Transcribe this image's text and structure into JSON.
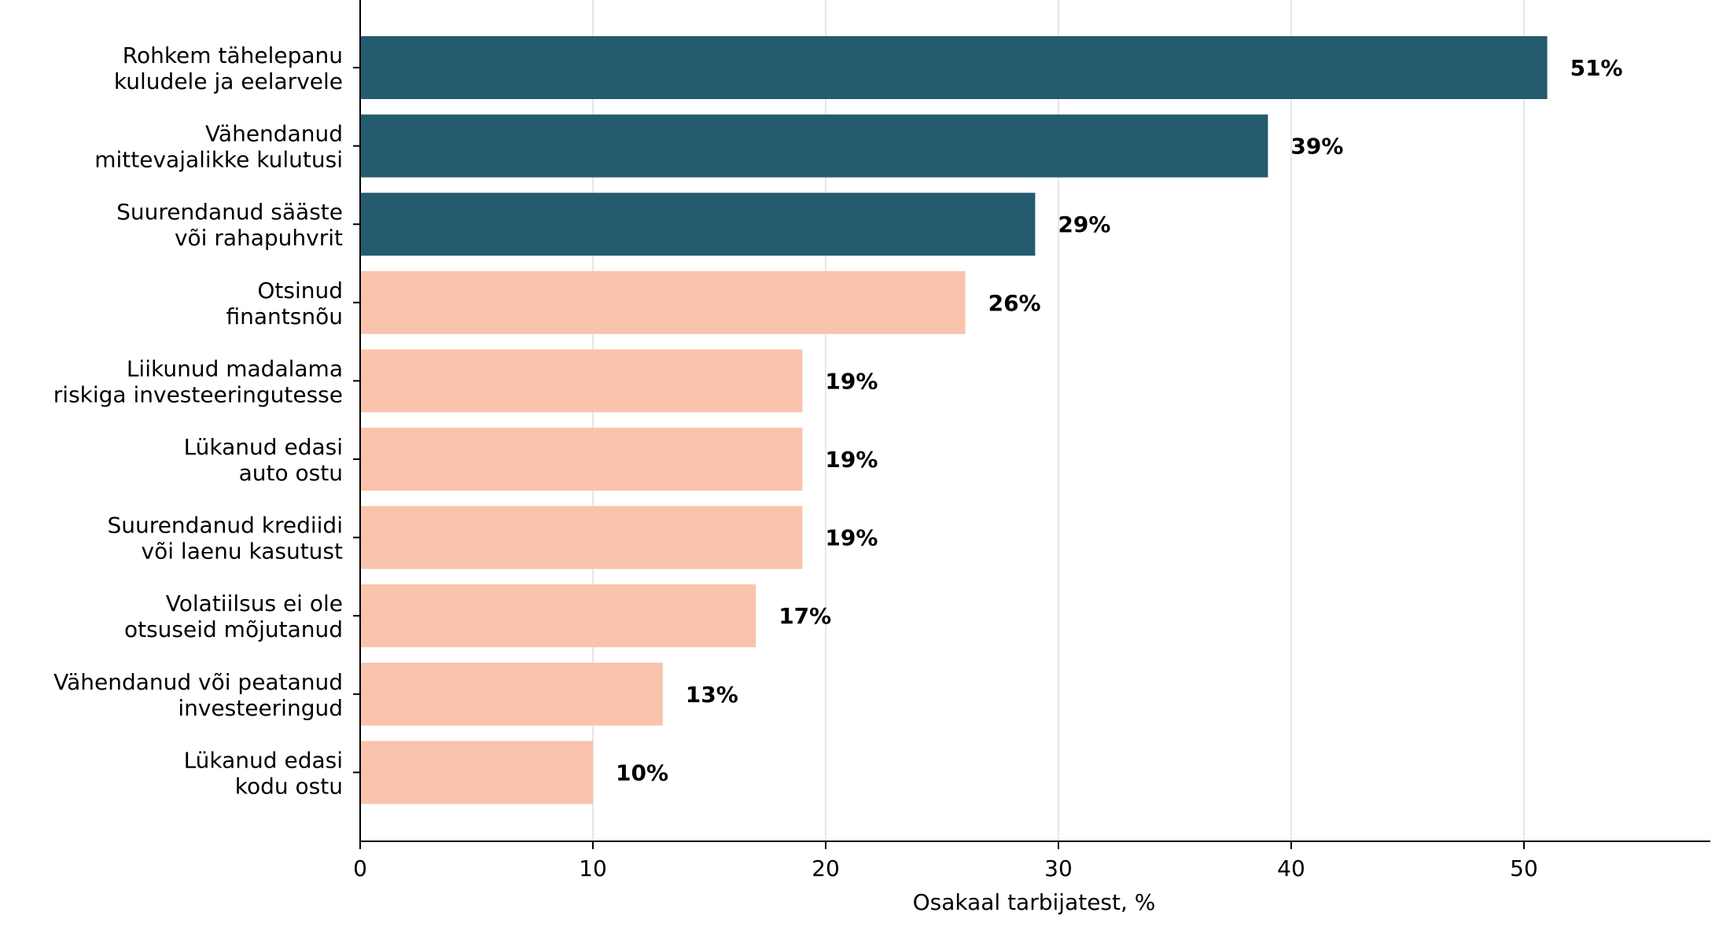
{
  "chart_data": {
    "type": "bar",
    "orientation": "horizontal",
    "title": "",
    "xlabel": "Osakaal tarbijatest, %",
    "ylabel": "",
    "xlim": [
      0,
      58
    ],
    "xticks": [
      0,
      10,
      20,
      30,
      40,
      50
    ],
    "grid": "vertical",
    "categories": [
      [
        "Rohkem tähelepanu",
        "kuludele ja eelarvele"
      ],
      [
        "Vähendanud",
        "mittevajalikke kulutusi"
      ],
      [
        "Suurendanud sääste",
        "või rahapuhvrit"
      ],
      [
        "Otsinud",
        "finantsnõu"
      ],
      [
        "Liikunud madalama",
        "riskiga investeeringutesse"
      ],
      [
        "Lükanud edasi",
        "auto ostu"
      ],
      [
        "Suurendanud krediidi",
        "või laenu kasutust"
      ],
      [
        "Volatiilsus ei ole",
        "otsuseid mõjutanud"
      ],
      [
        "Vähendanud või peatanud",
        "investeeringud"
      ],
      [
        "Lükanud edasi",
        "kodu ostu"
      ]
    ],
    "values": [
      51,
      39,
      29,
      26,
      19,
      19,
      19,
      17,
      13,
      10
    ],
    "value_labels": [
      "51%",
      "39%",
      "29%",
      "26%",
      "19%",
      "19%",
      "19%",
      "17%",
      "13%",
      "10%"
    ],
    "highlight_count": 3,
    "colors": {
      "highlight": "#245b6e",
      "default": "#fac3ab",
      "grid": "#dddddd",
      "axis": "#000000"
    }
  }
}
